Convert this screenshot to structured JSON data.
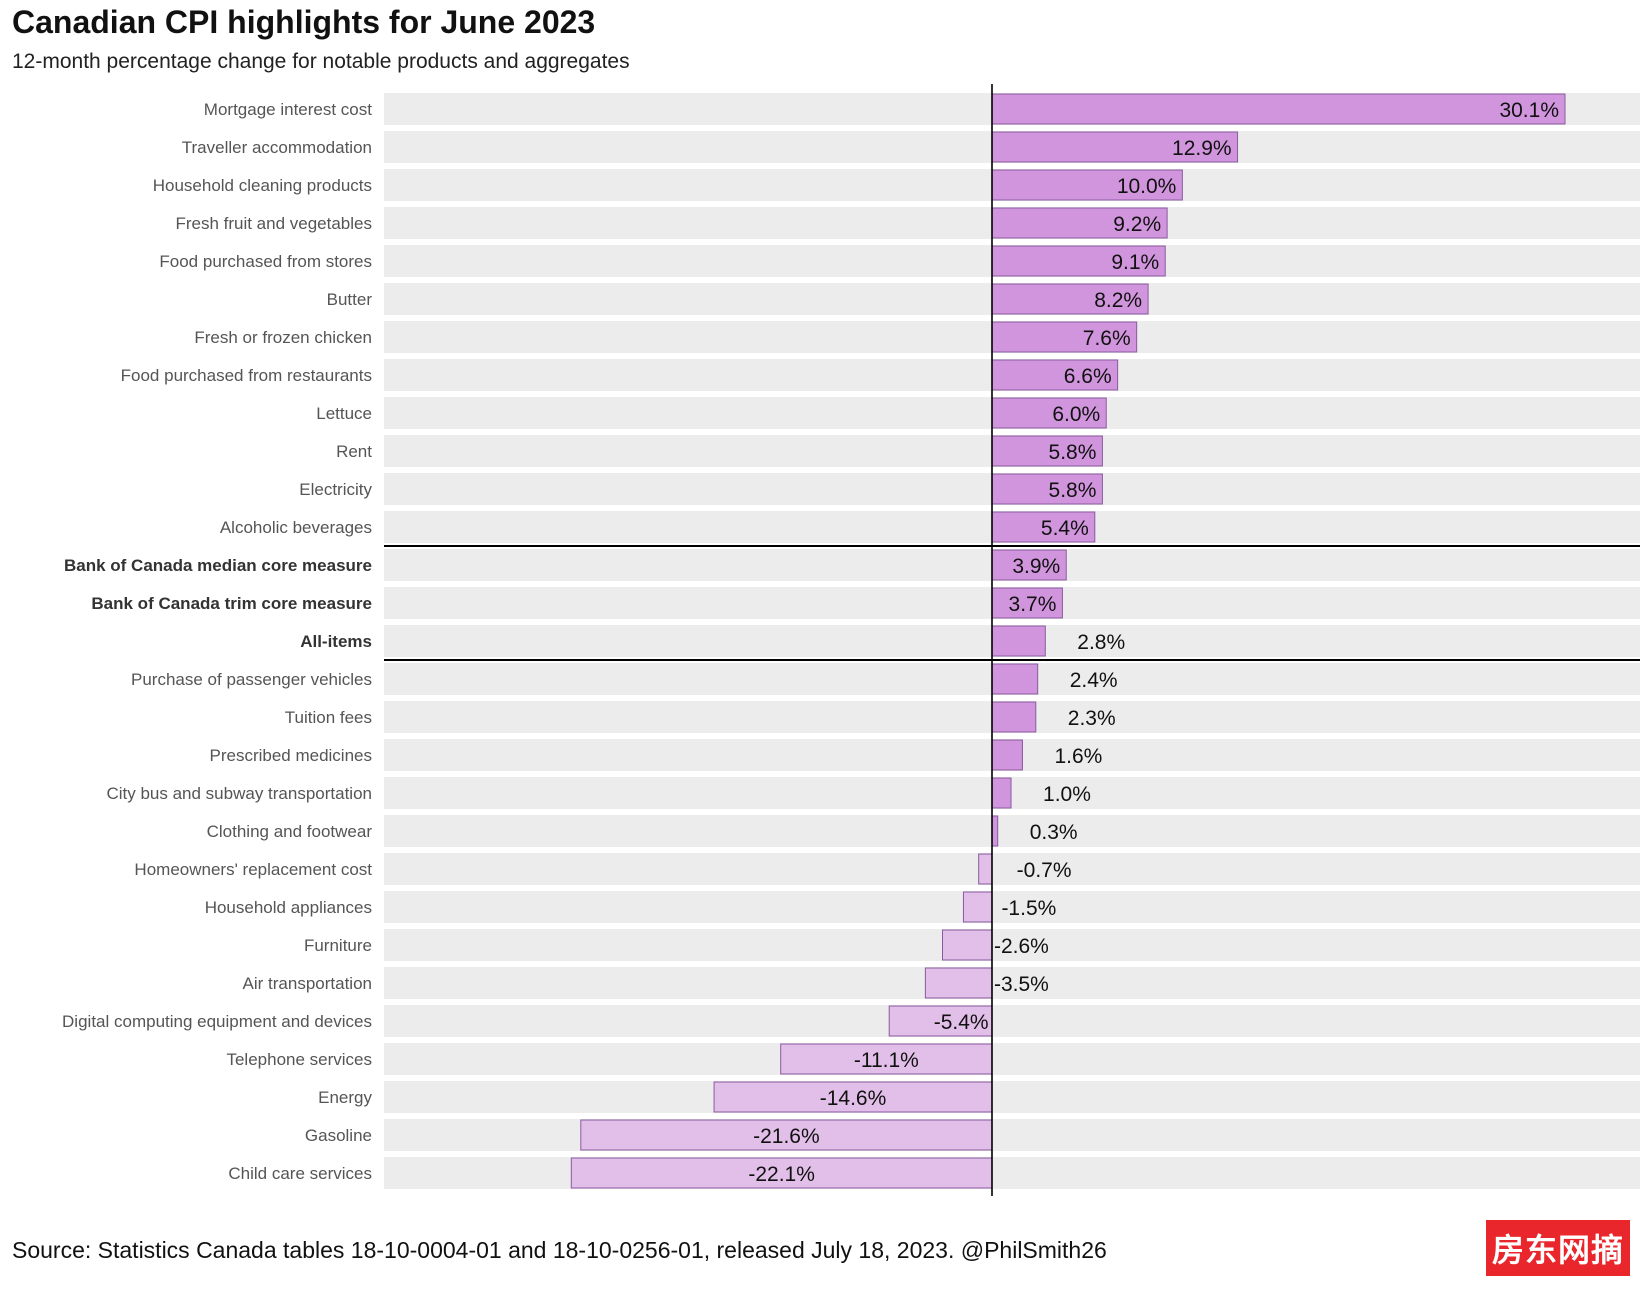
{
  "title": "Canadian CPI highlights for June 2023",
  "subtitle": "12-month percentage change for notable products and aggregates",
  "caption": "Source: Statistics Canada tables 18-10-0004-01 and 18-10-0256-01, released July 18, 2023. @PhilSmith26",
  "watermark": "房东网摘",
  "colors": {
    "positive": "#d095dc",
    "negative": "#e2bfe8",
    "bar_outline": "#8a5aa0",
    "band": "#ececec",
    "axis": "#000000"
  },
  "chart_data": {
    "type": "bar",
    "orientation": "horizontal",
    "value_suffix": "%",
    "grid": false,
    "categories": [
      "Mortgage interest cost",
      "Traveller accommodation",
      "Household cleaning products",
      "Fresh fruit and vegetables",
      "Food purchased from stores",
      "Butter",
      "Fresh or frozen chicken",
      "Food purchased from restaurants",
      "Lettuce",
      "Rent",
      "Electricity",
      "Alcoholic beverages",
      "Bank of Canada median core measure",
      "Bank of Canada trim core measure",
      "All-items",
      "Purchase of passenger vehicles",
      "Tuition fees",
      "Prescribed medicines",
      "City bus and subway transportation",
      "Clothing and footwear",
      "Homeowners' replacement cost",
      "Household appliances",
      "Furniture",
      "Air transportation",
      "Digital computing equipment and devices",
      "Telephone services",
      "Energy",
      "Gasoline",
      "Child care services"
    ],
    "values": [
      30.1,
      12.9,
      10.0,
      9.2,
      9.1,
      8.2,
      7.6,
      6.6,
      6.0,
      5.8,
      5.8,
      5.4,
      3.9,
      3.7,
      2.8,
      2.4,
      2.3,
      1.6,
      1.0,
      0.3,
      -0.7,
      -1.5,
      -2.6,
      -3.5,
      -5.4,
      -11.1,
      -14.6,
      -21.6,
      -22.1
    ],
    "labels": [
      "30.1%",
      "12.9%",
      "10.0%",
      "9.2%",
      "9.1%",
      "8.2%",
      "7.6%",
      "6.6%",
      "6.0%",
      "5.8%",
      "5.8%",
      "5.4%",
      "3.9%",
      "3.7%",
      "2.8%",
      "2.4%",
      "2.3%",
      "1.6%",
      "1.0%",
      "0.3%",
      "-0.7%",
      "-1.5%",
      "-2.6%",
      "-3.5%",
      "-5.4%",
      "-11.1%",
      "-14.6%",
      "-21.6%",
      "-22.1%"
    ],
    "bold_categories": [
      "Bank of Canada median core measure",
      "Bank of Canada trim core measure",
      "All-items"
    ],
    "separator_after": [
      "Alcoholic beverages",
      "All-items"
    ],
    "xlim": [
      -32,
      34
    ]
  }
}
